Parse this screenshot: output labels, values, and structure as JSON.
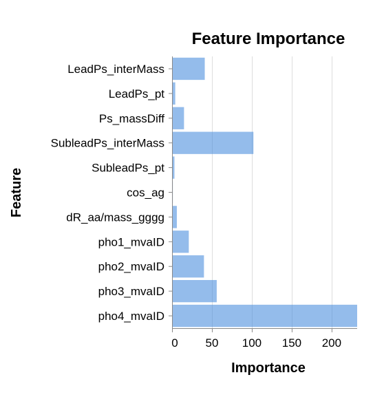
{
  "chart_data": {
    "type": "bar",
    "orientation": "horizontal",
    "title": "Feature Importance",
    "xlabel": "Importance",
    "ylabel": "Feature",
    "categories": [
      "LeadPs_interMass",
      "LeadPs_pt",
      "Ps_massDiff",
      "SubleadPs_interMass",
      "SubleadPs_pt",
      "cos_ag",
      "dR_aa/mass_gggg",
      "pho1_mvaID",
      "pho2_mvaID",
      "pho3_mvaID",
      "pho4_mvaID"
    ],
    "values": [
      41,
      4,
      15,
      102,
      3,
      1,
      6,
      21,
      40,
      56,
      232
    ],
    "xlim": [
      0,
      232
    ],
    "xticks": [
      0,
      50,
      100,
      150,
      200
    ],
    "xtick_labels": [
      "0",
      "50",
      "100",
      "150",
      "200"
    ],
    "grid": true,
    "bar_color": "#4c8fdd",
    "bar_opacity": 0.6
  }
}
